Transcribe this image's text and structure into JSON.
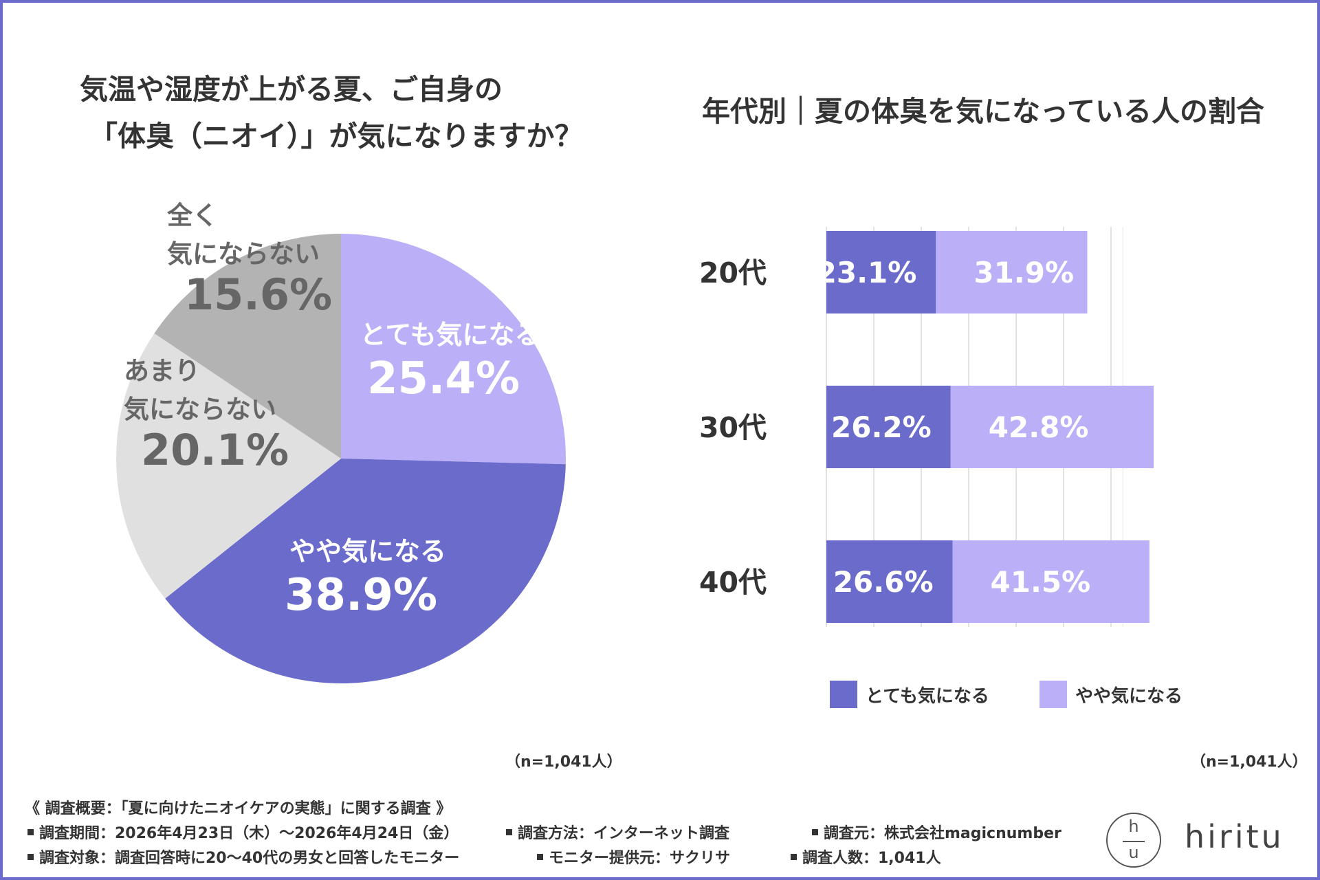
{
  "pie": {
    "title_line1": "気温や湿度が上がる夏、ご自身の",
    "title_line2": "「体臭（ニオイ）」が気になりますか？",
    "n_note": "（n=1,041人）"
  },
  "bar": {
    "title": "年代別｜夏の体臭を気になっている人の割合",
    "n_note": "（n=1,041人）"
  },
  "chart_data": [
    {
      "type": "pie",
      "title": "気温や湿度が上がる夏、ご自身の「体臭（ニオイ）」が気になりますか？",
      "slices": [
        {
          "label_lines": [
            "とても気になる"
          ],
          "value": 25.4,
          "value_text": "25.4%",
          "color": "#bbb0f8",
          "text_color": "#ffffff"
        },
        {
          "label_lines": [
            "やや気になる"
          ],
          "value": 38.9,
          "value_text": "38.9%",
          "color": "#6b6bcc",
          "text_color": "#ffffff"
        },
        {
          "label_lines": [
            "あまり",
            "気にならない"
          ],
          "value": 20.1,
          "value_text": "20.1%",
          "color": "#e0e0e0",
          "text_color": "#666666"
        },
        {
          "label_lines": [
            "全く",
            "気にならない"
          ],
          "value": 15.6,
          "value_text": "15.6%",
          "color": "#b3b3b3",
          "text_color": "#666666"
        }
      ]
    },
    {
      "type": "bar",
      "orientation": "horizontal",
      "stacked": true,
      "title": "年代別｜夏の体臭を気になっている人の割合",
      "categories": [
        "20代",
        "30代",
        "40代"
      ],
      "series": [
        {
          "name": "とても気になる",
          "values": [
            23.1,
            26.2,
            26.6
          ],
          "labels": [
            "23.1%",
            "26.2%",
            "26.6%"
          ],
          "color": "#6b6bcc"
        },
        {
          "name": "やや気になる",
          "values": [
            31.9,
            42.8,
            41.5
          ],
          "labels": [
            "31.9%",
            "42.8%",
            "41.5%"
          ],
          "color": "#bbb0f8"
        }
      ],
      "xlim": [
        0,
        70
      ],
      "grid": true,
      "legend": "bottom"
    }
  ],
  "footer": {
    "summary": "《 調査概要：「夏に向けたニオイケアの実態」に関する調査 》",
    "period": "調査期間：2026年4月23日（木）～2026年4月24日（金）",
    "method": "調査方法：インターネット調査",
    "source": "調査元：株式会社magicnumber",
    "target": "調査対象：調査回答時に20～40代の男女と回答したモニター",
    "provider": "モニター提供元：サクリサ",
    "count": "調査人数：1,041人"
  },
  "logo": {
    "top_letter": "h",
    "bottom_letter": "u",
    "word": "hiritu"
  }
}
